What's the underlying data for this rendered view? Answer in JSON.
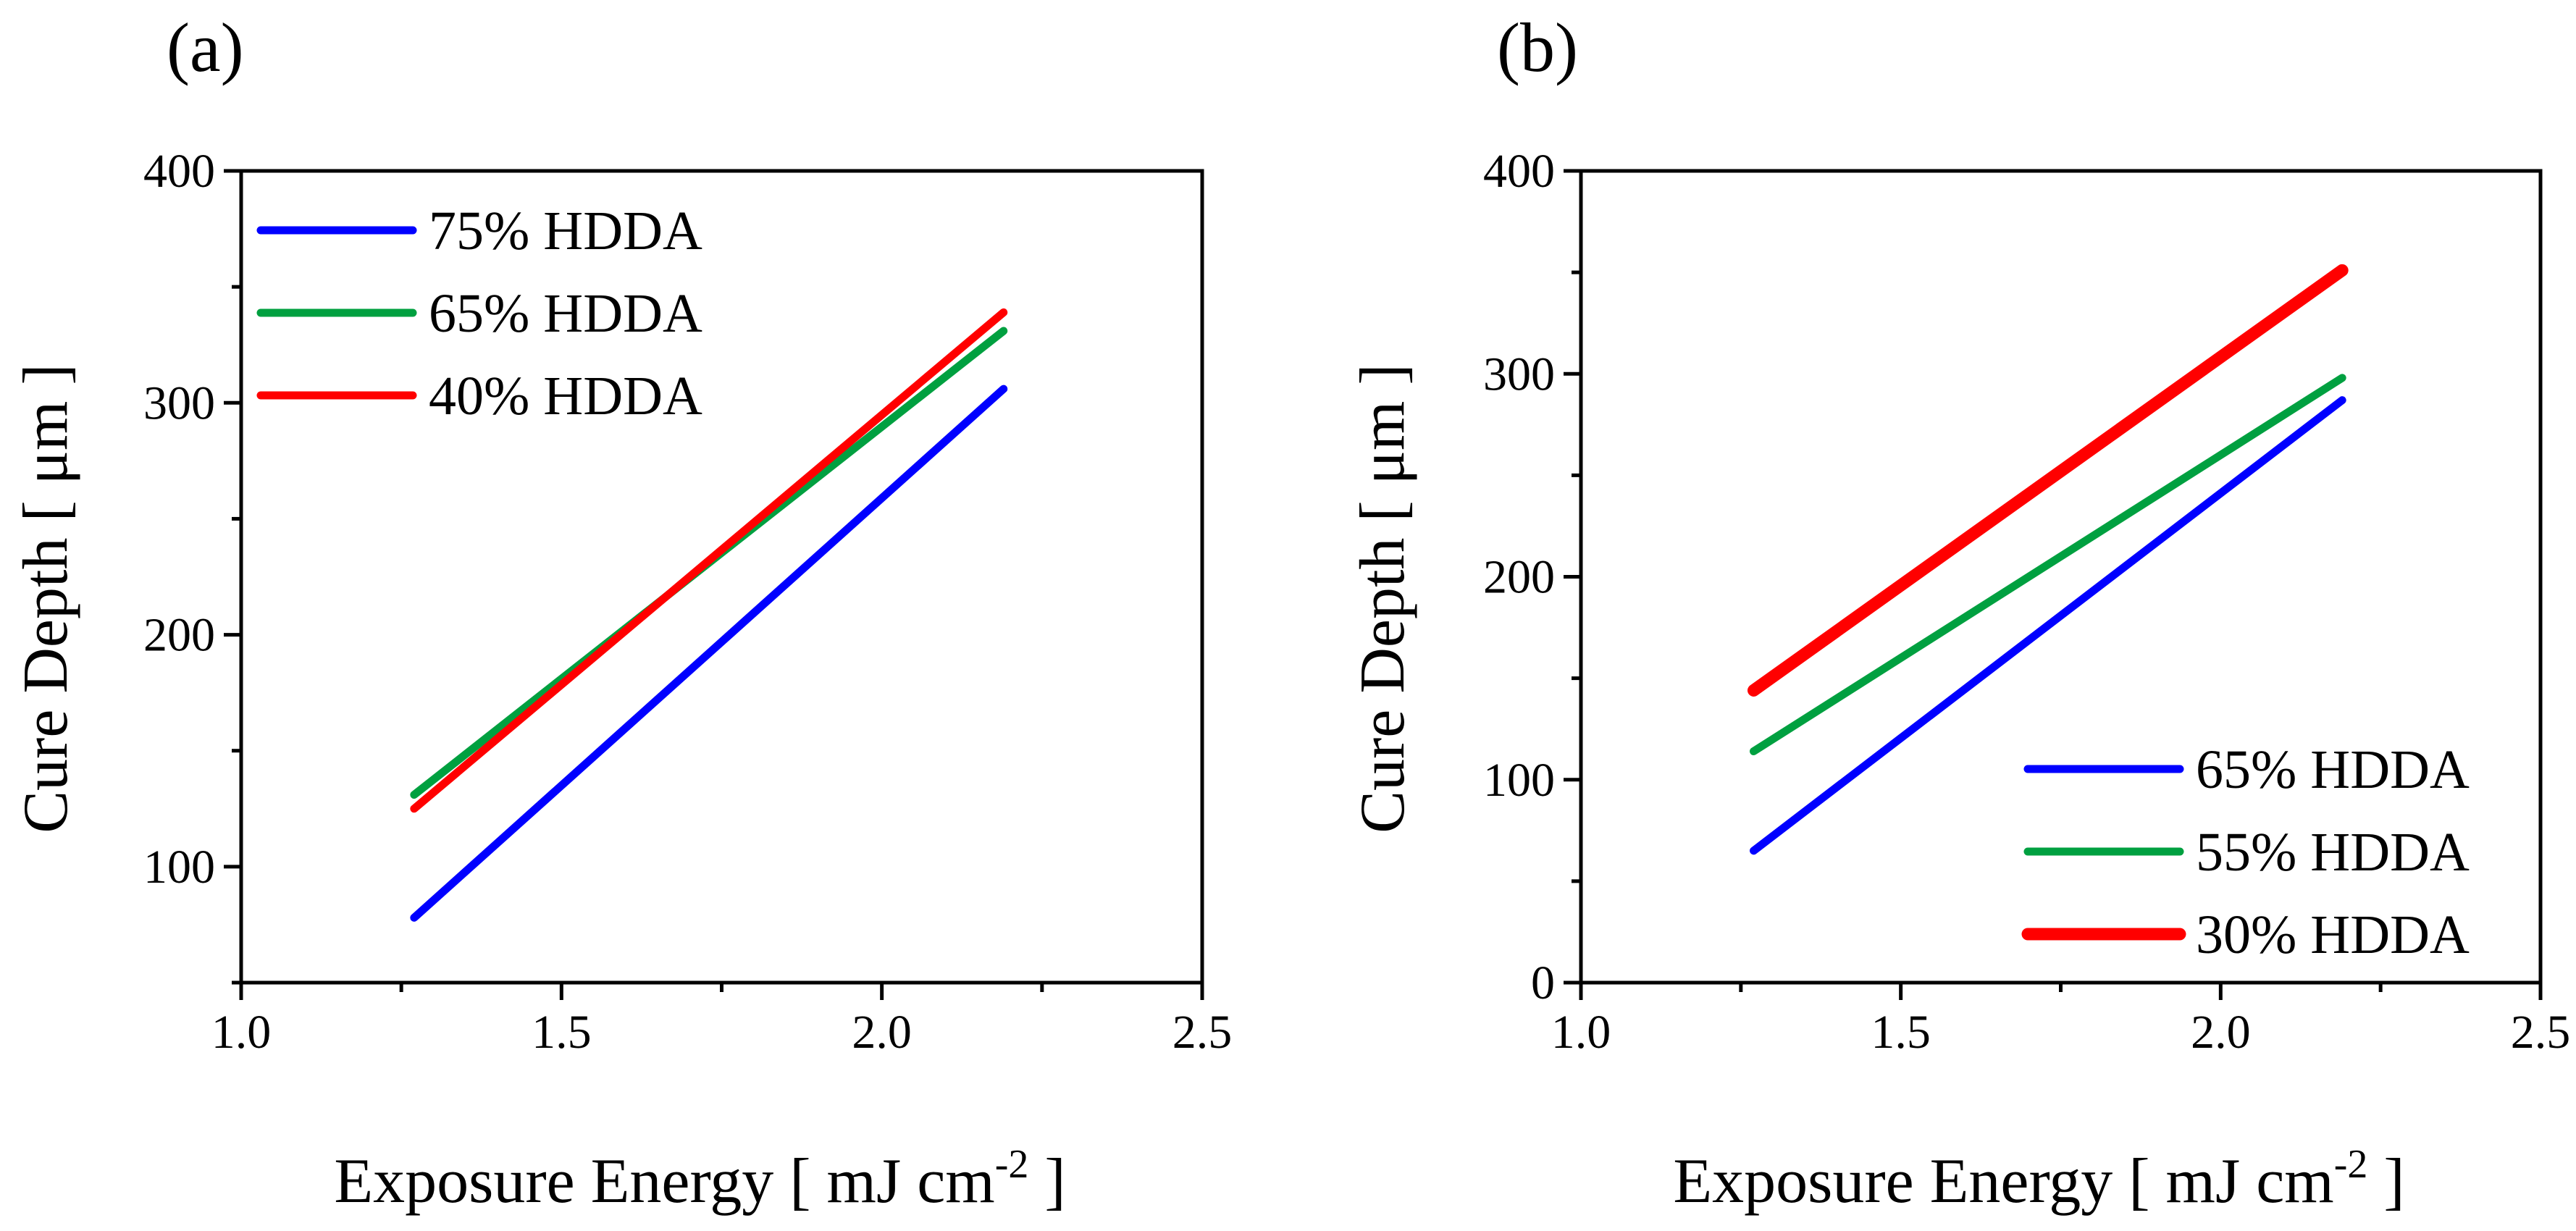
{
  "chart_data": [
    {
      "type": "line",
      "panel_label": "(a)",
      "xlabel": "Exposure Energy [ mJ cm",
      "xlabel_sup": "-2",
      "xlabel_end": " ]",
      "ylabel": "Cure Depth [ μm ]",
      "xlim": [
        1.0,
        2.5
      ],
      "ylim": [
        50,
        400
      ],
      "xticks": [
        1.0,
        1.5,
        2.0,
        2.5
      ],
      "xtick_labels": [
        "1.0",
        "1.5",
        "2.0",
        "2.5"
      ],
      "yticks": [
        100,
        200,
        300,
        400
      ],
      "ytick_labels": [
        "100",
        "200",
        "300",
        "400"
      ],
      "legend_position": "top-left",
      "series": [
        {
          "name": "75% HDDA",
          "color": "#0000ff",
          "x": [
            1.27,
            2.19
          ],
          "y": [
            78,
            306
          ]
        },
        {
          "name": "65% HDDA",
          "color": "#00a040",
          "x": [
            1.27,
            2.19
          ],
          "y": [
            131,
            331
          ]
        },
        {
          "name": "40% HDDA",
          "color": "#ff0000",
          "x": [
            1.27,
            2.19
          ],
          "y": [
            125,
            339
          ]
        }
      ]
    },
    {
      "type": "line",
      "panel_label": "(b)",
      "xlabel": "Exposure Energy [ mJ cm",
      "xlabel_sup": "-2",
      "xlabel_end": " ]",
      "ylabel": "Cure Depth [ μm ]",
      "xlim": [
        1.0,
        2.5
      ],
      "ylim": [
        0,
        400
      ],
      "xticks": [
        1.0,
        1.5,
        2.0,
        2.5
      ],
      "xtick_labels": [
        "1.0",
        "1.5",
        "2.0",
        "2.5"
      ],
      "yticks": [
        0,
        100,
        200,
        300,
        400
      ],
      "ytick_labels": [
        "0",
        "100",
        "200",
        "300",
        "400"
      ],
      "legend_position": "bottom-right",
      "series": [
        {
          "name": "65% HDDA",
          "color": "#0000ff",
          "x": [
            1.27,
            2.19
          ],
          "y": [
            65,
            287
          ]
        },
        {
          "name": "55% HDDA",
          "color": "#00a040",
          "x": [
            1.27,
            2.19
          ],
          "y": [
            114,
            298
          ]
        },
        {
          "name": "30% HDDA",
          "color": "#ff0000",
          "x": [
            1.27,
            2.19
          ],
          "y": [
            144,
            351
          ]
        }
      ]
    }
  ]
}
